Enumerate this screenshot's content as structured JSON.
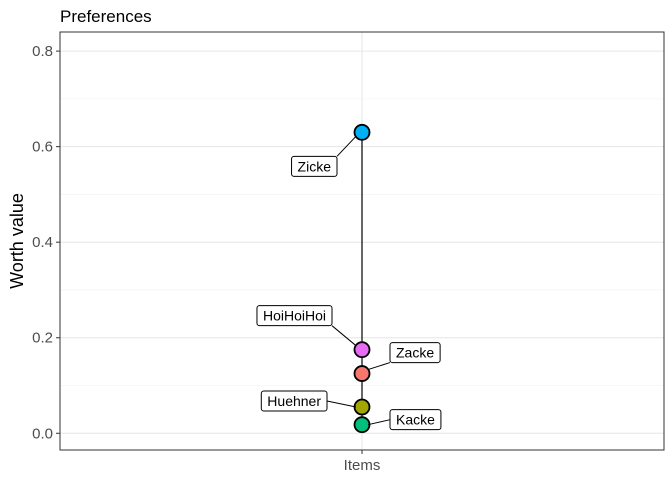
{
  "chart_data": {
    "type": "scatter",
    "title": "Preferences",
    "xlabel": "",
    "ylabel": "Worth value",
    "categories": [
      "Items"
    ],
    "ylim": [
      -0.035,
      0.84
    ],
    "yticks": [
      "0.0",
      "0.2",
      "0.4",
      "0.6",
      "0.8"
    ],
    "grid": true,
    "points": [
      {
        "name": "Zicke",
        "value": 0.63,
        "color": "#00b0f6",
        "label_side": "left"
      },
      {
        "name": "HoiHoiHoi",
        "value": 0.175,
        "color": "#e76bf3",
        "label_side": "left"
      },
      {
        "name": "Zacke",
        "value": 0.125,
        "color": "#f8766d",
        "label_side": "right"
      },
      {
        "name": "Huehner",
        "value": 0.055,
        "color": "#a3a500",
        "label_side": "left"
      },
      {
        "name": "Kacke",
        "value": 0.018,
        "color": "#00bf7d",
        "label_side": "right"
      }
    ]
  }
}
